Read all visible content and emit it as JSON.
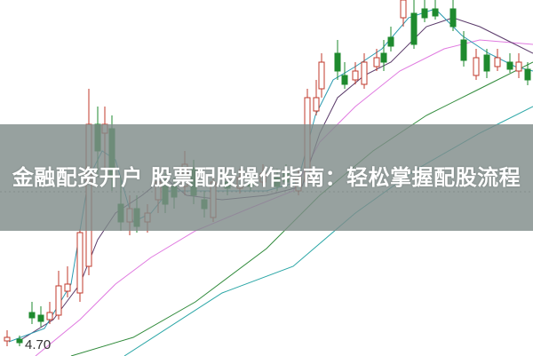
{
  "article": {
    "title": "金融配资开户 股票配股操作指南：轻松掌握配股流程"
  },
  "chart": {
    "price_label": "4.70",
    "colors": {
      "up": "#c0392b",
      "down": "#1e8a2e",
      "ma_fast": "#2a9ab0",
      "ma_mid": "#5a3a6a",
      "ma_pink": "#e07ae0",
      "ma_green": "#2f8a3a",
      "ma_teal": "#2aa6a6",
      "banner": "#808c8a"
    }
  }
}
